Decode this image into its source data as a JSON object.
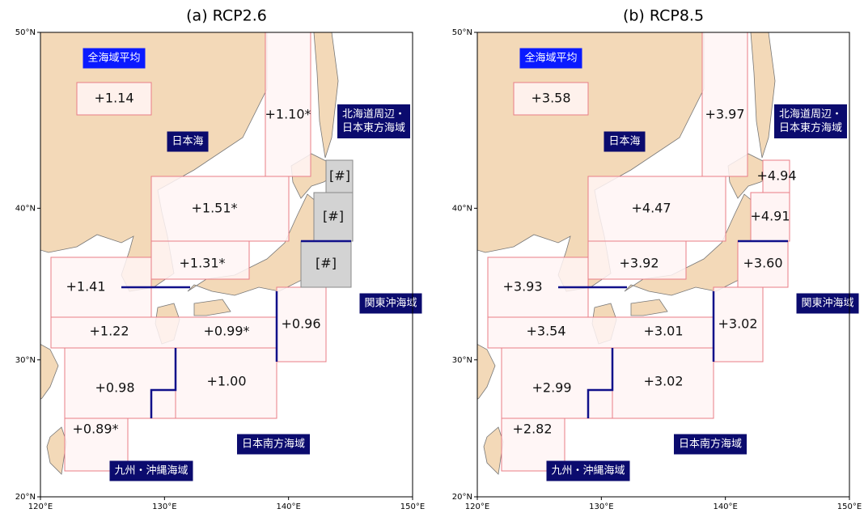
{
  "panels": [
    {
      "title": "(a) RCP2.6",
      "box_fill": "#fff4f4",
      "offshore_box_fill": "#d3d3d3",
      "values": [
        "+1.14",
        "+1.10*",
        "+1.51*",
        "+1.31*",
        "+1.41",
        "+1.22",
        "+0.99*",
        "+0.96",
        "+0.98",
        "+1.00",
        "+0.89*",
        "[#]",
        "[#]",
        "[#]"
      ]
    },
    {
      "title": "(b) RCP8.5",
      "box_fill": "#fff4f4",
      "offshore_box_fill": "#fff4f4",
      "values": [
        "+3.58",
        "+3.97",
        "+4.47",
        "+3.92",
        "+3.93",
        "+3.54",
        "+3.01",
        "+3.02",
        "+2.99",
        "+3.02",
        "+2.82",
        "+4.94",
        "+4.91",
        "+3.60"
      ]
    }
  ],
  "region_labels": [
    {
      "lines": [
        "全海域平均"
      ],
      "color": "#0a1aff"
    },
    {
      "lines": [
        "日本海"
      ],
      "color": "#0b0b6e"
    },
    {
      "lines": [
        "北海道周辺・",
        "日本東方海域"
      ],
      "color": "#0b0b6e"
    },
    {
      "lines": [
        "関東沖海域"
      ],
      "color": "#0b0b6e"
    },
    {
      "lines": [
        "日本南方海域"
      ],
      "color": "#0b0b6e"
    },
    {
      "lines": [
        "九州・沖縄海域"
      ],
      "color": "#0b0b6e"
    }
  ],
  "lat_ticks": [
    {
      "value": 50,
      "label": "50°N"
    },
    {
      "value": 40,
      "label": "40°N"
    },
    {
      "value": 30,
      "label": "30°N"
    },
    {
      "value": 20,
      "label": "20°N"
    }
  ],
  "lon_ticks": [
    {
      "value": 120,
      "label": "120°E"
    },
    {
      "value": 130,
      "label": "130°E"
    },
    {
      "value": 140,
      "label": "140°E"
    },
    {
      "value": 150,
      "label": "150°E"
    }
  ]
}
